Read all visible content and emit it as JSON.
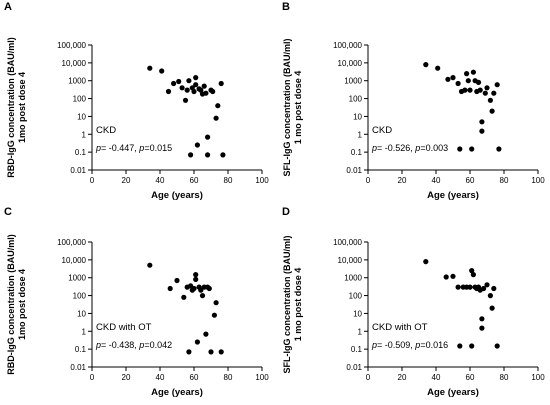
{
  "colors": {
    "axis": "#000000",
    "point": "#000000",
    "background": "#ffffff"
  },
  "chart_data": [
    {
      "type": "scatter",
      "panel_letter": "A",
      "annotation_line1": "CKD",
      "annotation_line2": "p= -0.447, p=0.015",
      "ylabel_line1": "RBD-IgG concentration (BAU/ml)",
      "ylabel_line2": "1mo post dose 4",
      "xlabel": "Age (years)",
      "xlim": [
        0,
        100
      ],
      "ylim": [
        0.01,
        100000
      ],
      "yscale": "log",
      "x_ticks": [
        0,
        20,
        40,
        60,
        80,
        100
      ],
      "y_ticks": [
        "0.01",
        "0.1",
        "1",
        "10",
        "100",
        "1000",
        "10,000",
        "100,000"
      ],
      "points": [
        [
          34,
          5000
        ],
        [
          41,
          3500
        ],
        [
          45,
          250
        ],
        [
          48,
          700
        ],
        [
          51,
          900
        ],
        [
          53,
          400
        ],
        [
          55,
          80
        ],
        [
          56,
          300
        ],
        [
          57,
          1000
        ],
        [
          58,
          0.07
        ],
        [
          59,
          400
        ],
        [
          60,
          250
        ],
        [
          61,
          1500
        ],
        [
          61,
          600
        ],
        [
          62,
          0.25
        ],
        [
          63,
          350
        ],
        [
          64,
          300
        ],
        [
          65,
          180
        ],
        [
          66,
          500
        ],
        [
          67,
          200
        ],
        [
          68,
          0.7
        ],
        [
          68,
          0.07
        ],
        [
          70,
          300
        ],
        [
          71,
          250
        ],
        [
          73,
          8
        ],
        [
          74,
          40
        ],
        [
          76,
          700
        ],
        [
          77,
          0.07
        ]
      ]
    },
    {
      "type": "scatter",
      "panel_letter": "B",
      "annotation_line1": "CKD",
      "annotation_line2": "p= -0.526, p=0.003",
      "ylabel_line1": "SFL-IgG concentration (BAU/ml)",
      "ylabel_line2": "1 mo post dose 4",
      "xlabel": "Age (years)",
      "xlim": [
        0,
        100
      ],
      "ylim": [
        0.01,
        100000
      ],
      "yscale": "log",
      "x_ticks": [
        0,
        20,
        40,
        60,
        80,
        100
      ],
      "y_ticks": [
        "0.01",
        "0.1",
        "1",
        "10",
        "100",
        "1000",
        "10,000",
        "100,000"
      ],
      "points": [
        [
          34,
          8000
        ],
        [
          41,
          5000
        ],
        [
          47,
          1200
        ],
        [
          50,
          1500
        ],
        [
          53,
          700
        ],
        [
          54,
          0.15
        ],
        [
          55,
          250
        ],
        [
          57,
          300
        ],
        [
          58,
          2500
        ],
        [
          59,
          1000
        ],
        [
          60,
          300
        ],
        [
          61,
          0.15
        ],
        [
          62,
          3000
        ],
        [
          63,
          1000
        ],
        [
          64,
          250
        ],
        [
          65,
          800
        ],
        [
          66,
          300
        ],
        [
          67,
          5
        ],
        [
          67,
          1.5
        ],
        [
          69,
          200
        ],
        [
          70,
          400
        ],
        [
          72,
          80
        ],
        [
          73,
          20
        ],
        [
          74,
          200
        ],
        [
          76,
          600
        ],
        [
          77,
          0.15
        ]
      ]
    },
    {
      "type": "scatter",
      "panel_letter": "C",
      "annotation_line1": "CKD with OT",
      "annotation_line2": "p= -0.438, p=0.042",
      "ylabel_line1": "RBD-IgG concentration (BAU/ml)",
      "ylabel_line2": "1mo post dose 4",
      "xlabel": "Age (years)",
      "xlim": [
        0,
        100
      ],
      "ylim": [
        0.01,
        100000
      ],
      "yscale": "log",
      "x_ticks": [
        0,
        20,
        40,
        60,
        80,
        100
      ],
      "y_ticks": [
        "0.01",
        "0.1",
        "1",
        "10",
        "100",
        "1000",
        "10,000",
        "100,000"
      ],
      "points": [
        [
          34,
          5000
        ],
        [
          46,
          250
        ],
        [
          50,
          700
        ],
        [
          54,
          80
        ],
        [
          56,
          300
        ],
        [
          57,
          0.07
        ],
        [
          58,
          350
        ],
        [
          59,
          200
        ],
        [
          60,
          250
        ],
        [
          61,
          1500
        ],
        [
          61,
          800
        ],
        [
          62,
          0.25
        ],
        [
          63,
          300
        ],
        [
          64,
          200
        ],
        [
          65,
          100
        ],
        [
          66,
          300
        ],
        [
          67,
          0.7
        ],
        [
          68,
          300
        ],
        [
          69,
          250
        ],
        [
          70,
          0.07
        ],
        [
          72,
          8
        ],
        [
          73,
          40
        ],
        [
          76,
          0.07
        ]
      ]
    },
    {
      "type": "scatter",
      "panel_letter": "D",
      "annotation_line1": "CKD with OT",
      "annotation_line2": "p= -0.509, p=0.016",
      "ylabel_line1": "SFL-IgG concentration (BAU/ml)",
      "ylabel_line2": "1 mo post dose 4",
      "xlabel": "Age (years)",
      "xlim": [
        0,
        100
      ],
      "ylim": [
        0.01,
        100000
      ],
      "yscale": "log",
      "x_ticks": [
        0,
        20,
        40,
        60,
        80,
        100
      ],
      "y_ticks": [
        "0.01",
        "0.1",
        "1",
        "10",
        "100",
        "1000",
        "10,000",
        "100,000"
      ],
      "points": [
        [
          34,
          8000
        ],
        [
          46,
          1100
        ],
        [
          50,
          1200
        ],
        [
          53,
          300
        ],
        [
          54,
          0.15
        ],
        [
          56,
          300
        ],
        [
          58,
          300
        ],
        [
          60,
          300
        ],
        [
          61,
          2500
        ],
        [
          61,
          0.15
        ],
        [
          62,
          1500
        ],
        [
          63,
          300
        ],
        [
          64,
          250
        ],
        [
          65,
          300
        ],
        [
          66,
          200
        ],
        [
          67,
          5
        ],
        [
          67,
          1.5
        ],
        [
          68,
          250
        ],
        [
          70,
          400
        ],
        [
          72,
          100
        ],
        [
          73,
          20
        ],
        [
          74,
          250
        ],
        [
          76,
          0.15
        ]
      ]
    }
  ]
}
